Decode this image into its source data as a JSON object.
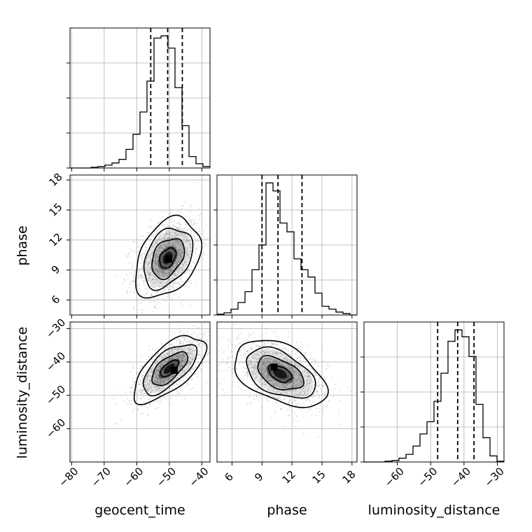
{
  "colors": {
    "ink": "#000000",
    "grid": "#b0b0b0",
    "cloud": "#8a8a8a"
  },
  "chart_data": {
    "type": "corner",
    "parameters": [
      "geocent_time",
      "phase",
      "luminosity_distance"
    ],
    "axis_labels": {
      "geocent_time": "geocent_time",
      "phase": "phase",
      "luminosity_distance": "luminosity_distance"
    },
    "ranges": {
      "geocent_time": [
        -80.5,
        -37.5
      ],
      "phase": [
        4.5,
        18.5
      ],
      "luminosity_distance": [
        -70,
        -28
      ]
    },
    "ticks": {
      "geocent_time": {
        "values": [
          -80,
          -70,
          -60,
          -50,
          -40
        ],
        "labels": [
          "−80",
          "−70",
          "−60",
          "−50",
          "−40"
        ]
      },
      "phase": {
        "values": [
          6,
          9,
          12,
          15,
          18
        ],
        "labels": [
          "6",
          "9",
          "12",
          "15",
          "18"
        ]
      },
      "luminosity_distance": {
        "values": [
          -60,
          -50,
          -40,
          -30
        ],
        "labels": [
          "−60",
          "−50",
          "−40",
          "−30"
        ]
      }
    },
    "histograms": {
      "geocent_time": {
        "edges_start": -80.5,
        "bin_width": 2.15,
        "counts": [
          0,
          0,
          0,
          1,
          2,
          4,
          7,
          12,
          26,
          47,
          78,
          121,
          181,
          184,
          167,
          112,
          59,
          16,
          6,
          2
        ],
        "quantiles": [
          -55.7,
          -50.5,
          -46.0
        ]
      },
      "phase": {
        "edges_start": 4.5,
        "bin_width": 0.7,
        "counts": [
          1,
          3,
          8,
          17,
          32,
          62,
          96,
          181,
          170,
          126,
          114,
          77,
          62,
          52,
          30,
          12,
          8,
          4,
          2,
          0
        ],
        "quantiles": [
          9.0,
          10.6,
          13.0
        ]
      },
      "luminosity_distance": {
        "edges_start": -70,
        "bin_width": 2.1,
        "counts": [
          0,
          0,
          0,
          1,
          2,
          5,
          10,
          21,
          37,
          53,
          80,
          117,
          159,
          174,
          165,
          139,
          76,
          32,
          8,
          1
        ],
        "quantiles": [
          -47.9,
          -41.9,
          -37.0
        ]
      }
    },
    "pairs": [
      {
        "x": "geocent_time",
        "y": "phase",
        "center": [
          -50.5,
          10.2
        ],
        "sd": [
          5.0,
          2.0
        ],
        "rho": 0.35,
        "contours": [
          0.5,
          1.0,
          1.5,
          2.0
        ],
        "peak": [
          -50.2,
          10.1
        ]
      },
      {
        "x": "geocent_time",
        "y": "luminosity_distance",
        "center": [
          -50.0,
          -42.0
        ],
        "sd": [
          5.5,
          5.0
        ],
        "rho": 0.65,
        "contours": [
          0.5,
          1.0,
          1.5,
          2.0
        ],
        "peak": [
          -48.5,
          -42.5
        ]
      },
      {
        "x": "phase",
        "y": "luminosity_distance",
        "center": [
          10.8,
          -43.5
        ],
        "sd": [
          2.3,
          5.0
        ],
        "rho": -0.45,
        "contours": [
          0.5,
          1.0,
          1.5,
          2.0
        ],
        "peak": [
          10.2,
          -41.5
        ]
      }
    ],
    "grid": true,
    "legend": "none"
  }
}
